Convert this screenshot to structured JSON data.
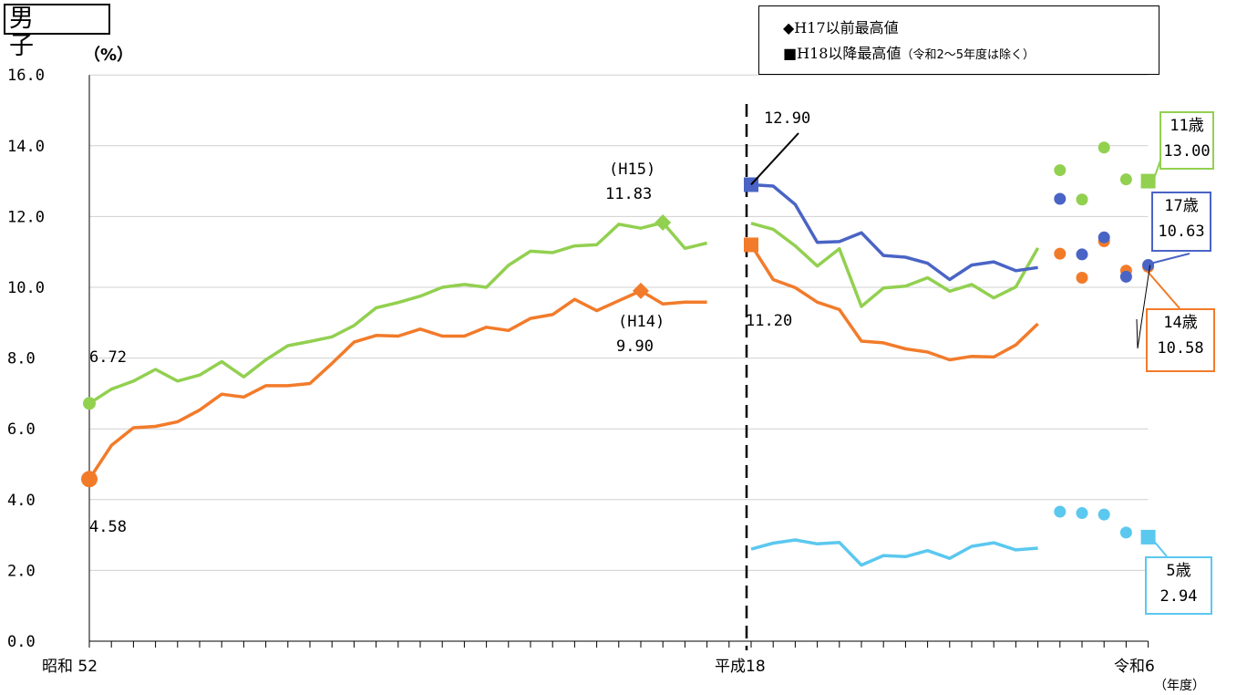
{
  "header": {
    "title": "男 子",
    "unit": "（%）",
    "legend_item1": "◆H17以前最高値",
    "legend_item2_main": "■H18以降最高値",
    "legend_item2_note": "（令和2～5年度は除く）"
  },
  "colors": {
    "age11": "#92d050",
    "age14": "#f27b2a",
    "age17": "#4a64c5",
    "age5": "#5bc8ef"
  },
  "annotations": {
    "a11_start": "6.72",
    "a14_start": "4.58",
    "a11_peak_year": "(H15)",
    "a11_peak_val": "11.83",
    "a14_peak_year": "(H14)",
    "a14_peak_val": "9.90",
    "a17_h18": "12.90",
    "a14_h18": "11.20"
  },
  "callouts": {
    "c11_label": "11歳",
    "c11_val": "13.00",
    "c17_label": "17歳",
    "c17_val": "10.63",
    "c14_label": "14歳",
    "c14_val": "10.58",
    "c5_label": "5歳",
    "c5_val": "2.94"
  },
  "chart_data": {
    "type": "line",
    "ylabel": "（%）",
    "ylim": [
      0,
      16
    ],
    "yticks": [
      "0.0",
      "2.0",
      "4.0",
      "6.0",
      "8.0",
      "10.0",
      "12.0",
      "14.0",
      "16.0"
    ],
    "xtick_labels": [
      "昭和 52",
      "平成18",
      "令和6"
    ],
    "xlabel": "（年度）",
    "x_start": "昭和52",
    "x_end": "令和6",
    "series": [
      {
        "name": "11歳",
        "segments": [
          [
            [
              0,
              6.72
            ],
            [
              1,
              7.12
            ],
            [
              2,
              7.35
            ],
            [
              3,
              7.68
            ],
            [
              4,
              7.35
            ],
            [
              5,
              7.52
            ],
            [
              6,
              7.9
            ],
            [
              7,
              7.47
            ],
            [
              8,
              7.95
            ],
            [
              9,
              8.35
            ],
            [
              10,
              8.47
            ],
            [
              11,
              8.6
            ],
            [
              12,
              8.92
            ],
            [
              13,
              9.42
            ],
            [
              14,
              9.57
            ],
            [
              15,
              9.75
            ],
            [
              16,
              10.0
            ],
            [
              17,
              10.08
            ],
            [
              18,
              10.0
            ],
            [
              19,
              10.62
            ],
            [
              20,
              11.02
            ],
            [
              21,
              10.98
            ],
            [
              22,
              11.17
            ],
            [
              23,
              11.2
            ],
            [
              24,
              11.78
            ],
            [
              25,
              11.67
            ],
            [
              26,
              11.83
            ],
            [
              27,
              11.1
            ],
            [
              28,
              11.25
            ]
          ],
          [
            [
              30,
              11.81
            ],
            [
              31,
              11.64
            ],
            [
              32,
              11.17
            ],
            [
              33,
              10.6
            ],
            [
              34,
              11.09
            ],
            [
              35,
              9.46
            ],
            [
              36,
              9.98
            ],
            [
              37,
              10.03
            ],
            [
              38,
              10.27
            ],
            [
              39,
              9.89
            ],
            [
              40,
              10.08
            ],
            [
              41,
              9.7
            ],
            [
              42,
              10.01
            ],
            [
              43,
              11.11
            ]
          ]
        ],
        "points": [
          [
            44,
            13.31
          ],
          [
            45,
            12.48
          ],
          [
            46,
            13.95
          ],
          [
            47,
            13.05
          ],
          [
            48,
            13.0
          ]
        ]
      },
      {
        "name": "14歳",
        "segments": [
          [
            [
              0,
              4.58
            ],
            [
              1,
              5.53
            ],
            [
              2,
              6.03
            ],
            [
              3,
              6.07
            ],
            [
              4,
              6.2
            ],
            [
              5,
              6.53
            ],
            [
              6,
              6.98
            ],
            [
              7,
              6.9
            ],
            [
              8,
              7.22
            ],
            [
              9,
              7.22
            ],
            [
              10,
              7.28
            ],
            [
              11,
              7.85
            ],
            [
              12,
              8.45
            ],
            [
              13,
              8.64
            ],
            [
              14,
              8.62
            ],
            [
              15,
              8.82
            ],
            [
              16,
              8.62
            ],
            [
              17,
              8.62
            ],
            [
              18,
              8.87
            ],
            [
              19,
              8.78
            ],
            [
              20,
              9.12
            ],
            [
              21,
              9.23
            ],
            [
              22,
              9.66
            ],
            [
              23,
              9.34
            ],
            [
              24,
              9.62
            ],
            [
              25,
              9.9
            ],
            [
              26,
              9.53
            ],
            [
              27,
              9.58
            ],
            [
              28,
              9.58
            ]
          ],
          [
            [
              30,
              11.2
            ],
            [
              31,
              10.22
            ],
            [
              32,
              9.99
            ],
            [
              33,
              9.58
            ],
            [
              34,
              9.37
            ],
            [
              35,
              8.48
            ],
            [
              36,
              8.43
            ],
            [
              37,
              8.26
            ],
            [
              38,
              8.17
            ],
            [
              39,
              7.95
            ],
            [
              40,
              8.05
            ],
            [
              41,
              8.03
            ],
            [
              42,
              8.37
            ],
            [
              43,
              8.97
            ]
          ]
        ],
        "points": [
          [
            44,
            10.95
          ],
          [
            45,
            10.27
          ],
          [
            46,
            11.3
          ],
          [
            47,
            10.47
          ],
          [
            48,
            10.58
          ]
        ]
      },
      {
        "name": "17歳",
        "segments": [
          [
            [
              30,
              12.9
            ],
            [
              31,
              12.86
            ],
            [
              32,
              12.34
            ],
            [
              33,
              11.27
            ],
            [
              34,
              11.29
            ],
            [
              35,
              11.54
            ],
            [
              36,
              10.9
            ],
            [
              37,
              10.85
            ],
            [
              38,
              10.68
            ],
            [
              39,
              10.22
            ],
            [
              40,
              10.63
            ],
            [
              41,
              10.72
            ],
            [
              42,
              10.47
            ],
            [
              43,
              10.56
            ]
          ]
        ],
        "points": [
          [
            44,
            12.5
          ],
          [
            45,
            10.93
          ],
          [
            46,
            11.41
          ],
          [
            47,
            10.3
          ],
          [
            48,
            10.63
          ]
        ]
      },
      {
        "name": "5歳",
        "segments": [
          [
            [
              30,
              2.6
            ],
            [
              31,
              2.77
            ],
            [
              32,
              2.86
            ],
            [
              33,
              2.75
            ],
            [
              34,
              2.79
            ],
            [
              35,
              2.15
            ],
            [
              36,
              2.42
            ],
            [
              37,
              2.39
            ],
            [
              38,
              2.56
            ],
            [
              39,
              2.34
            ],
            [
              40,
              2.68
            ],
            [
              41,
              2.78
            ],
            [
              42,
              2.58
            ],
            [
              43,
              2.63
            ]
          ]
        ],
        "points": [
          [
            44,
            3.66
          ],
          [
            45,
            3.62
          ],
          [
            46,
            3.58
          ],
          [
            47,
            3.07
          ],
          [
            48,
            2.94
          ]
        ]
      }
    ],
    "record_h17_before": [
      {
        "series": "11歳",
        "x": 26,
        "y": 11.83
      },
      {
        "series": "14歳",
        "x": 25,
        "y": 9.9
      }
    ],
    "record_h18_after": [
      {
        "series": "11歳",
        "x": 48,
        "y": 13.0
      },
      {
        "series": "14歳",
        "x": 30,
        "y": 11.2
      },
      {
        "series": "17歳",
        "x": 30,
        "y": 12.9
      },
      {
        "series": "5歳",
        "x": 48,
        "y": 2.94
      }
    ],
    "start_markers": [
      {
        "series": "11歳",
        "x": 0,
        "y": 6.72
      },
      {
        "series": "14歳",
        "x": 0,
        "y": 4.58
      }
    ],
    "divider_x": 30,
    "grid": true,
    "legend_position": "top-right"
  }
}
